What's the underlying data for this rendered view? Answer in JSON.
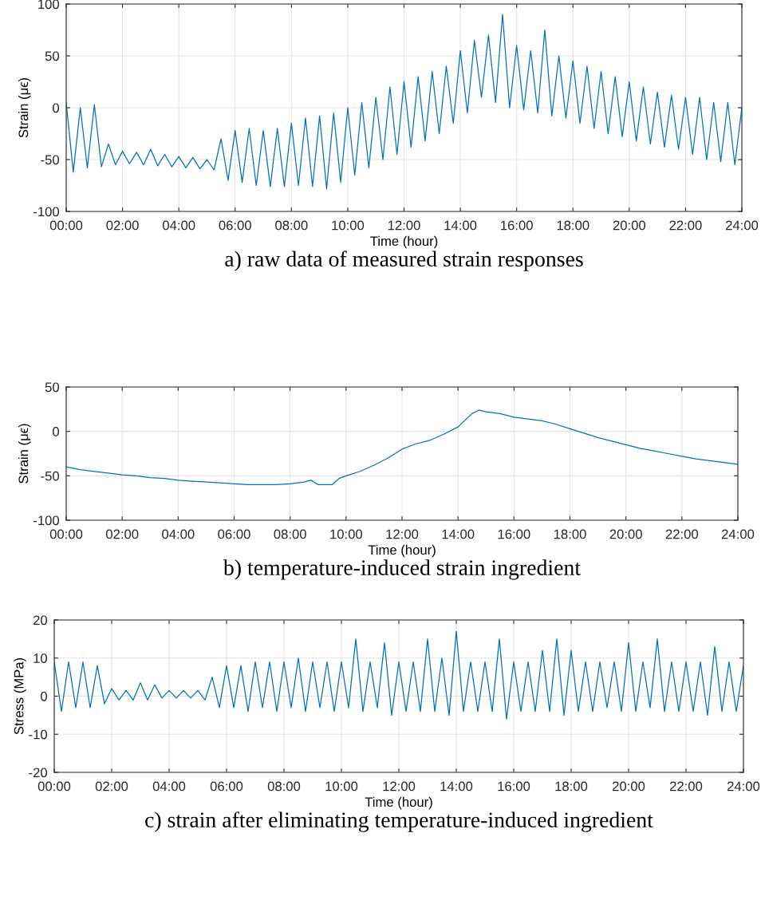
{
  "chart_data": [
    {
      "type": "line",
      "title": "a) raw data of measured strain responses",
      "xlabel": "Time (hour)",
      "ylabel": "Strain (μϵ)",
      "grid": true,
      "xlim": [
        0,
        24
      ],
      "xticks": [
        {
          "value": 0,
          "label": "00:00"
        },
        {
          "value": 2,
          "label": "02:00"
        },
        {
          "value": 4,
          "label": "04:00"
        },
        {
          "value": 6,
          "label": "06:00"
        },
        {
          "value": 8,
          "label": "08:00"
        },
        {
          "value": 10,
          "label": "10:00"
        },
        {
          "value": 12,
          "label": "12:00"
        },
        {
          "value": 14,
          "label": "14:00"
        },
        {
          "value": 16,
          "label": "16:00"
        },
        {
          "value": 18,
          "label": "18:00"
        },
        {
          "value": 20,
          "label": "20:00"
        },
        {
          "value": 22,
          "label": "22:00"
        },
        {
          "value": 24,
          "label": "24:00"
        }
      ],
      "ylim": [
        -100,
        100
      ],
      "yticks": [
        -100,
        -50,
        0,
        50,
        100
      ],
      "series": [
        {
          "color": "#0072bd",
          "x": [
            0,
            0.25,
            0.5,
            0.75,
            1,
            1.25,
            1.5,
            1.75,
            2,
            2.25,
            2.5,
            2.75,
            3,
            3.25,
            3.5,
            3.75,
            4,
            4.25,
            4.5,
            4.75,
            5,
            5.25,
            5.5,
            5.75,
            6,
            6.25,
            6.5,
            6.75,
            7,
            7.25,
            7.5,
            7.75,
            8,
            8.25,
            8.5,
            8.75,
            9,
            9.25,
            9.5,
            9.75,
            10,
            10.25,
            10.5,
            10.75,
            11,
            11.25,
            11.5,
            11.75,
            12,
            12.25,
            12.5,
            12.75,
            13,
            13.25,
            13.5,
            13.75,
            14,
            14.25,
            14.5,
            14.75,
            15,
            15.25,
            15.5,
            15.75,
            16,
            16.25,
            16.5,
            16.75,
            17,
            17.25,
            17.5,
            17.75,
            18,
            18.25,
            18.5,
            18.75,
            19,
            19.25,
            19.5,
            19.75,
            20,
            20.25,
            20.5,
            20.75,
            21,
            21.25,
            21.5,
            21.75,
            22,
            22.25,
            22.5,
            22.75,
            23,
            23.25,
            23.5,
            23.75,
            24
          ],
          "values": [
            5,
            -62,
            0,
            -58,
            3,
            -57,
            -35,
            -55,
            -42,
            -54,
            -43,
            -55,
            -40,
            -56,
            -45,
            -57,
            -47,
            -58,
            -48,
            -59,
            -50,
            -60,
            -30,
            -70,
            -22,
            -72,
            -20,
            -75,
            -22,
            -76,
            -20,
            -76,
            -15,
            -75,
            -10,
            -76,
            -8,
            -78,
            -5,
            -72,
            0,
            -65,
            5,
            -58,
            10,
            -50,
            20,
            -45,
            25,
            -38,
            30,
            -32,
            35,
            -25,
            40,
            -15,
            55,
            -5,
            65,
            10,
            70,
            5,
            90,
            0,
            60,
            -2,
            55,
            -5,
            75,
            -8,
            50,
            -10,
            45,
            -15,
            40,
            -20,
            35,
            -25,
            30,
            -28,
            25,
            -32,
            20,
            -35,
            15,
            -38,
            12,
            -40,
            10,
            -45,
            10,
            -50,
            5,
            -52,
            5,
            -55,
            0
          ]
        }
      ]
    },
    {
      "type": "line",
      "title": "b) temperature-induced strain ingredient",
      "xlabel": "Time (hour)",
      "ylabel": "Strain (μϵ)",
      "grid": true,
      "xlim": [
        0,
        24
      ],
      "xticks": [
        {
          "value": 0,
          "label": "00:00"
        },
        {
          "value": 2,
          "label": "02:00"
        },
        {
          "value": 4,
          "label": "04:00"
        },
        {
          "value": 6,
          "label": "06:00"
        },
        {
          "value": 8,
          "label": "08:00"
        },
        {
          "value": 10,
          "label": "10:00"
        },
        {
          "value": 12,
          "label": "12:00"
        },
        {
          "value": 14,
          "label": "14:00"
        },
        {
          "value": 16,
          "label": "16:00"
        },
        {
          "value": 18,
          "label": "18:00"
        },
        {
          "value": 20,
          "label": "20:00"
        },
        {
          "value": 22,
          "label": "22:00"
        },
        {
          "value": 24,
          "label": "24:00"
        }
      ],
      "ylim": [
        -100,
        50
      ],
      "yticks": [
        -100,
        -50,
        0,
        50
      ],
      "series": [
        {
          "color": "#0072bd",
          "x": [
            0,
            0.5,
            1,
            1.5,
            2,
            2.5,
            3,
            3.5,
            4,
            4.5,
            5,
            5.5,
            6,
            6.5,
            7,
            7.5,
            8,
            8.5,
            8.75,
            9,
            9.5,
            9.75,
            10,
            10.5,
            11,
            11.5,
            12,
            12.5,
            13,
            13.5,
            14,
            14.5,
            14.75,
            15,
            15.5,
            16,
            16.5,
            17,
            17.5,
            18,
            18.5,
            19,
            19.5,
            20,
            20.5,
            21,
            21.5,
            22,
            22.5,
            23,
            23.5,
            24
          ],
          "values": [
            -40,
            -43,
            -45,
            -47,
            -49,
            -50,
            -52,
            -53,
            -55,
            -56,
            -57,
            -58,
            -59,
            -60,
            -60,
            -60,
            -59,
            -57,
            -55,
            -60,
            -60,
            -53,
            -50,
            -45,
            -38,
            -30,
            -20,
            -14,
            -10,
            -3,
            5,
            20,
            24,
            22,
            20,
            16,
            14,
            12,
            8,
            3,
            -2,
            -7,
            -11,
            -15,
            -19,
            -22,
            -25,
            -28,
            -31,
            -33,
            -35,
            -37
          ]
        }
      ]
    },
    {
      "type": "line",
      "title": "c) strain after eliminating temperature-induced ingredient",
      "xlabel": "Time (hour)",
      "ylabel": "Stress (MPa)",
      "grid": true,
      "xlim": [
        0,
        24
      ],
      "xticks": [
        {
          "value": 0,
          "label": "00:00"
        },
        {
          "value": 2,
          "label": "02:00"
        },
        {
          "value": 4,
          "label": "04:00"
        },
        {
          "value": 6,
          "label": "06:00"
        },
        {
          "value": 8,
          "label": "08:00"
        },
        {
          "value": 10,
          "label": "10:00"
        },
        {
          "value": 12,
          "label": "12:00"
        },
        {
          "value": 14,
          "label": "14:00"
        },
        {
          "value": 16,
          "label": "16:00"
        },
        {
          "value": 18,
          "label": "18:00"
        },
        {
          "value": 20,
          "label": "20:00"
        },
        {
          "value": 22,
          "label": "22:00"
        },
        {
          "value": 24,
          "label": "24:00"
        }
      ],
      "ylim": [
        -20,
        20
      ],
      "yticks": [
        -20,
        -10,
        0,
        10,
        20
      ],
      "series": [
        {
          "color": "#0072bd",
          "x": [
            0,
            0.25,
            0.5,
            0.75,
            1,
            1.25,
            1.5,
            1.75,
            2,
            2.25,
            2.5,
            2.75,
            3,
            3.25,
            3.5,
            3.75,
            4,
            4.25,
            4.5,
            4.75,
            5,
            5.25,
            5.5,
            5.75,
            6,
            6.25,
            6.5,
            6.75,
            7,
            7.25,
            7.5,
            7.75,
            8,
            8.25,
            8.5,
            8.75,
            9,
            9.25,
            9.5,
            9.75,
            10,
            10.25,
            10.5,
            10.75,
            11,
            11.25,
            11.5,
            11.75,
            12,
            12.25,
            12.5,
            12.75,
            13,
            13.25,
            13.5,
            13.75,
            14,
            14.25,
            14.5,
            14.75,
            15,
            15.25,
            15.5,
            15.75,
            16,
            16.25,
            16.5,
            16.75,
            17,
            17.25,
            17.5,
            17.75,
            18,
            18.25,
            18.5,
            18.75,
            19,
            19.25,
            19.5,
            19.75,
            20,
            20.25,
            20.5,
            20.75,
            21,
            21.25,
            21.5,
            21.75,
            22,
            22.25,
            22.5,
            22.75,
            23,
            23.25,
            23.5,
            23.75,
            24
          ],
          "values": [
            9,
            -4,
            9,
            -3,
            9,
            -3,
            8,
            -2,
            2,
            -1,
            1.5,
            -1,
            3.5,
            -1,
            3,
            -0.5,
            1.5,
            -0.5,
            1.5,
            -0.5,
            1.5,
            -1,
            5,
            -3,
            8,
            -3,
            8,
            -4,
            9,
            -3,
            9,
            -4,
            9,
            -3,
            10,
            -4,
            9,
            -3,
            9,
            -4,
            9,
            -3,
            15,
            -4,
            9,
            -3,
            14,
            -5,
            9,
            -4,
            9,
            -4,
            15,
            -4,
            10,
            -5,
            17,
            -4,
            9,
            -4,
            9,
            -4,
            15,
            -6,
            9,
            -4,
            9,
            -4,
            12,
            -4,
            15,
            -5,
            12,
            -4,
            9,
            -4,
            9,
            -3,
            9,
            -4,
            14,
            -4,
            9,
            -3,
            15,
            -4,
            9,
            -4,
            9,
            -4,
            9,
            -5,
            13,
            -4,
            9,
            -4,
            8
          ]
        }
      ]
    }
  ]
}
